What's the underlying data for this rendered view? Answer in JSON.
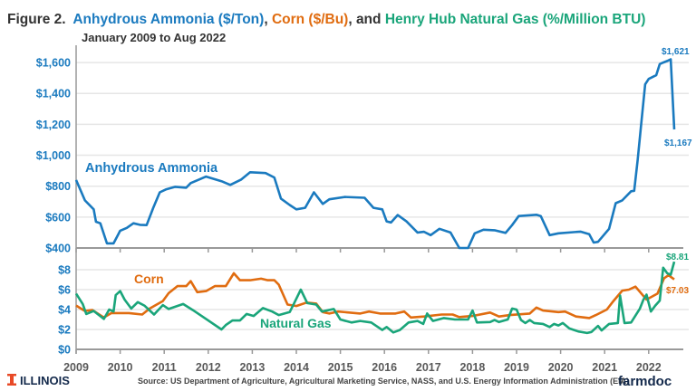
{
  "chart_data": [
    {
      "type": "line",
      "title_prefix": "Figure 2.",
      "title_parts": [
        {
          "text": "Anhydrous Ammonia ($/Ton)",
          "color": "#1a7abf"
        },
        {
          "text": ", ",
          "color": "#333333"
        },
        {
          "text": "Corn ($/Bu)",
          "color": "#e06c10"
        },
        {
          "text": ", and ",
          "color": "#333333"
        },
        {
          "text": "Henry Hub Natural Gas (%/Million BTU)",
          "color": "#1aa57a"
        }
      ],
      "subtitle": "January 2009 to Aug 2022",
      "panel": "top",
      "ylim": [
        400,
        1700
      ],
      "yticks": [
        "$400",
        "$600",
        "$800",
        "$1,000",
        "$1,200",
        "$1,400",
        "$1,600"
      ],
      "ytick_values": [
        400,
        600,
        800,
        1000,
        1200,
        1400,
        1600
      ],
      "grid": true,
      "series": [
        {
          "name": "Anhydrous Ammonia",
          "color": "#1a7abf",
          "x": [
            2009.0,
            2009.2,
            2009.4,
            2009.45,
            2009.55,
            2009.7,
            2009.85,
            2010.0,
            2010.15,
            2010.3,
            2010.45,
            2010.6,
            2010.75,
            2010.9,
            2011.05,
            2011.25,
            2011.5,
            2011.6,
            2011.95,
            2012.3,
            2012.5,
            2012.75,
            2012.95,
            2013.3,
            2013.5,
            2013.65,
            2013.85,
            2014.0,
            2014.2,
            2014.4,
            2014.6,
            2014.75,
            2015.1,
            2015.55,
            2015.75,
            2015.95,
            2016.05,
            2016.15,
            2016.3,
            2016.5,
            2016.75,
            2016.9,
            2017.05,
            2017.25,
            2017.5,
            2017.7,
            2017.9,
            2018.05,
            2018.25,
            2018.5,
            2018.75,
            2018.9,
            2019.05,
            2019.45,
            2019.55,
            2019.75,
            2019.95,
            2020.45,
            2020.65,
            2020.75,
            2020.85,
            2021.1,
            2021.25,
            2021.4,
            2021.6,
            2021.67,
            2021.75,
            2021.83,
            2021.92,
            2022.0,
            2022.17,
            2022.25,
            2022.33,
            2022.42,
            2022.5,
            2022.58
          ],
          "y": [
            840,
            708,
            650,
            570,
            560,
            430,
            430,
            512,
            530,
            560,
            550,
            548,
            660,
            760,
            780,
            796,
            790,
            820,
            862,
            832,
            808,
            843,
            890,
            885,
            856,
            720,
            678,
            650,
            660,
            760,
            685,
            715,
            730,
            725,
            660,
            650,
            572,
            565,
            613,
            572,
            500,
            505,
            483,
            524,
            500,
            400,
            400,
            495,
            518,
            515,
            498,
            548,
            607,
            615,
            607,
            483,
            495,
            506,
            489,
            435,
            440,
            524,
            690,
            708,
            767,
            770,
            968,
            1200,
            1459,
            1494,
            1518,
            1590,
            1600,
            1610,
            1621,
            1167
          ]
        }
      ],
      "annotations": [
        {
          "text": "Anhydrous Ammonia",
          "color": "#1a7abf"
        },
        {
          "text": "$1,621",
          "color": "#1a7abf"
        },
        {
          "text": "$1,167",
          "color": "#1a7abf"
        }
      ]
    },
    {
      "type": "line",
      "panel": "bottom",
      "ylim": [
        0,
        9
      ],
      "yticks": [
        "$0",
        "$2",
        "$4",
        "$6",
        "$8"
      ],
      "ytick_values": [
        0,
        2,
        4,
        6,
        8
      ],
      "xticks": [
        "2009",
        "2010",
        "2011",
        "2012",
        "2013",
        "2014",
        "2015",
        "2016",
        "2017",
        "2018",
        "2019",
        "2020",
        "2021",
        "2022"
      ],
      "grid": true,
      "series": [
        {
          "name": "Corn",
          "color": "#e06c10",
          "x": [
            2009.0,
            2009.2,
            2009.37,
            2009.63,
            2009.8,
            2010.2,
            2010.5,
            2010.67,
            2010.97,
            2011.1,
            2011.3,
            2011.5,
            2011.6,
            2011.75,
            2011.95,
            2012.15,
            2012.4,
            2012.58,
            2012.72,
            2012.95,
            2013.2,
            2013.35,
            2013.5,
            2013.6,
            2013.8,
            2014.0,
            2014.23,
            2014.45,
            2014.6,
            2014.75,
            2014.95,
            2015.45,
            2015.65,
            2015.9,
            2016.25,
            2016.45,
            2016.6,
            2016.9,
            2017.3,
            2017.55,
            2017.7,
            2018.0,
            2018.4,
            2018.6,
            2018.85,
            2019.3,
            2019.45,
            2019.6,
            2019.95,
            2020.1,
            2020.35,
            2020.65,
            2020.8,
            2021.05,
            2021.2,
            2021.4,
            2021.55,
            2021.7,
            2021.95,
            2022.2,
            2022.35,
            2022.45,
            2022.58
          ],
          "y": [
            4.4,
            3.85,
            3.95,
            3.2,
            3.65,
            3.65,
            3.5,
            4.1,
            4.85,
            5.65,
            6.35,
            6.35,
            6.85,
            5.75,
            5.85,
            6.35,
            6.35,
            7.65,
            6.95,
            6.95,
            7.1,
            6.95,
            6.95,
            6.5,
            4.5,
            4.35,
            4.7,
            4.6,
            3.75,
            3.6,
            3.8,
            3.6,
            3.8,
            3.6,
            3.6,
            3.8,
            3.2,
            3.3,
            3.5,
            3.5,
            3.25,
            3.35,
            3.7,
            3.3,
            3.45,
            3.6,
            4.2,
            3.9,
            3.75,
            3.8,
            3.3,
            3.15,
            3.45,
            4.0,
            4.85,
            5.9,
            6.0,
            6.3,
            5.0,
            5.6,
            7.15,
            7.45,
            7.03
          ]
        },
        {
          "name": "Natural Gas",
          "color": "#1aa57a",
          "x": [
            2009.0,
            2009.15,
            2009.23,
            2009.4,
            2009.63,
            2009.75,
            2009.85,
            2009.9,
            2010.0,
            2010.1,
            2010.25,
            2010.4,
            2010.55,
            2010.77,
            2010.97,
            2011.1,
            2011.43,
            2011.65,
            2011.95,
            2012.3,
            2012.4,
            2012.55,
            2012.72,
            2012.87,
            2013.03,
            2013.24,
            2013.45,
            2013.6,
            2013.85,
            2013.95,
            2014.1,
            2014.25,
            2014.45,
            2014.58,
            2014.85,
            2015.0,
            2015.25,
            2015.45,
            2015.7,
            2015.95,
            2016.05,
            2016.2,
            2016.35,
            2016.55,
            2016.75,
            2016.88,
            2016.97,
            2017.1,
            2017.35,
            2017.6,
            2017.9,
            2018.0,
            2018.1,
            2018.4,
            2018.5,
            2018.6,
            2018.8,
            2018.9,
            2019.0,
            2019.1,
            2019.2,
            2019.3,
            2019.4,
            2019.6,
            2019.75,
            2019.85,
            2019.95,
            2020.05,
            2020.2,
            2020.4,
            2020.6,
            2020.7,
            2020.85,
            2020.93,
            2021.1,
            2021.3,
            2021.35,
            2021.45,
            2021.6,
            2021.8,
            2021.88,
            2021.95,
            2022.05,
            2022.15,
            2022.25,
            2022.33,
            2022.42,
            2022.5,
            2022.58
          ],
          "y": [
            5.6,
            4.55,
            3.55,
            3.85,
            3.05,
            4.0,
            3.8,
            5.45,
            5.85,
            5.0,
            4.1,
            4.75,
            4.4,
            3.5,
            4.45,
            4.05,
            4.55,
            3.95,
            3.05,
            2.0,
            2.45,
            2.9,
            2.9,
            3.55,
            3.35,
            4.15,
            3.8,
            3.45,
            3.75,
            4.65,
            6.0,
            4.65,
            4.5,
            3.8,
            4.05,
            3.0,
            2.7,
            2.85,
            2.7,
            1.95,
            2.25,
            1.7,
            1.95,
            2.7,
            2.85,
            2.55,
            3.6,
            2.85,
            3.15,
            3.0,
            3.0,
            3.9,
            2.7,
            2.75,
            2.95,
            2.75,
            3.0,
            4.1,
            4.0,
            2.95,
            2.65,
            2.95,
            2.65,
            2.55,
            2.25,
            2.55,
            2.4,
            2.65,
            2.1,
            1.8,
            1.65,
            1.75,
            2.35,
            1.9,
            2.55,
            2.65,
            5.4,
            2.65,
            2.7,
            4.1,
            5.0,
            5.5,
            3.8,
            4.4,
            4.9,
            8.2,
            7.65,
            7.5,
            8.81
          ]
        }
      ],
      "annotations": [
        {
          "text": "Corn",
          "color": "#e06c10"
        },
        {
          "text": "Natural Gas",
          "color": "#1aa57a"
        },
        {
          "text": "$8.81",
          "color": "#1aa57a"
        },
        {
          "text": "$7.03",
          "color": "#e06c10"
        }
      ]
    }
  ],
  "footer": {
    "logo_left": "ILLINOIS",
    "logo_left_color": "#e84a27",
    "source": "Source: US Department of Agriculture, Agricultural Marketing Service, NASS, and U.S. Energy Information Administration (EIA)",
    "logo_right": "farmdoc",
    "logo_right_color": "#13294b"
  }
}
